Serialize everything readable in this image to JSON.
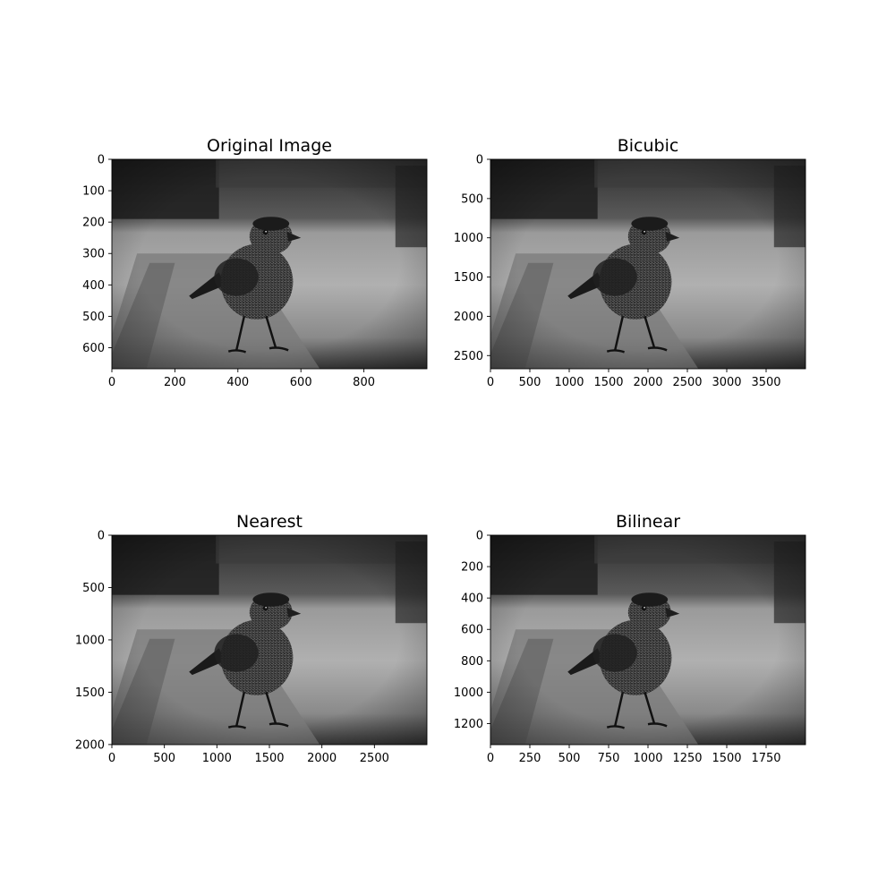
{
  "figure": {
    "background": "#ffffff",
    "layout": "2x2 grid of image subplots",
    "image_content": "grayscale photograph of a small speckled bird standing on a wooden plank, blurred background",
    "colormap": "gray"
  },
  "chart_data": [
    {
      "type": "image",
      "title": "Original Image",
      "xlim": [
        0,
        1000
      ],
      "ylim": [
        667,
        0
      ],
      "xticks": [
        0,
        200,
        400,
        600,
        800
      ],
      "yticks": [
        0,
        100,
        200,
        300,
        400,
        500,
        600
      ]
    },
    {
      "type": "image",
      "title": "Bicubic",
      "xlim": [
        0,
        4000
      ],
      "ylim": [
        2668,
        0
      ],
      "xticks": [
        0,
        500,
        1000,
        1500,
        2000,
        2500,
        3000,
        3500
      ],
      "yticks": [
        0,
        500,
        1000,
        1500,
        2000,
        2500
      ]
    },
    {
      "type": "image",
      "title": "Nearest",
      "xlim": [
        0,
        3000
      ],
      "ylim": [
        2001,
        0
      ],
      "xticks": [
        0,
        500,
        1000,
        1500,
        2000,
        2500
      ],
      "yticks": [
        0,
        500,
        1000,
        1500,
        2000
      ]
    },
    {
      "type": "image",
      "title": "Bilinear",
      "xlim": [
        0,
        2000
      ],
      "ylim": [
        1334,
        0
      ],
      "xticks": [
        0,
        250,
        500,
        750,
        1000,
        1250,
        1500,
        1750
      ],
      "yticks": [
        0,
        200,
        400,
        600,
        800,
        1000,
        1200
      ]
    }
  ]
}
